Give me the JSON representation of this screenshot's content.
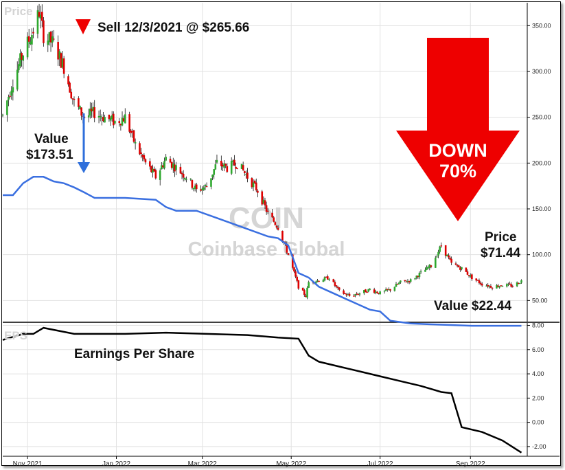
{
  "price_panel": {
    "corner_label": "Price",
    "y_ticks": [
      "350.00",
      "300.00",
      "250.00",
      "200.00",
      "150.00",
      "100.00",
      "50.00"
    ],
    "watermark_symbol": "COIN",
    "watermark_name": "Coinbase Global"
  },
  "eps_panel": {
    "corner_label": "EPS",
    "title": "Earnings Per Share",
    "y_ticks": [
      "8.00",
      "6.00",
      "4.00",
      "2.00",
      "0.00",
      "-2.00"
    ]
  },
  "x_axis": {
    "labels": [
      "Nov 2021",
      "Jan 2022",
      "Mar 2022",
      "May 2022",
      "Jul 2022",
      "Sep 2022"
    ]
  },
  "annotations": {
    "sell": "Sell 12/3/2021 @ $265.66",
    "value_start_line1": "Value",
    "value_start_line2": "$173.51",
    "down_line1": "DOWN",
    "down_line2": "70%",
    "price_end_line1": "Price",
    "price_end_line2": "$71.44",
    "value_end": "Value $22.44"
  },
  "colors": {
    "up_candle": "#2ea82e",
    "down_candle": "#dd0000",
    "value_line": "#3a6fe0",
    "eps_line": "#000000",
    "arrow": "#ee0000",
    "sell_marker": "#ee0000",
    "blue_arrow": "#2f6fdb"
  },
  "chart_data": [
    {
      "type": "line",
      "panel": "price",
      "x_axis": "date",
      "xlim": [
        "2021-10-15",
        "2022-10-10"
      ],
      "ylim": [
        27,
        375
      ],
      "grid": true,
      "series": [
        {
          "style": "candlestick",
          "x": [
            "2021-10-15",
            "2021-10-22",
            "2021-10-29",
            "2021-11-05",
            "2021-11-09",
            "2021-11-12",
            "2021-11-19",
            "2021-11-26",
            "2021-12-03",
            "2021-12-10",
            "2021-12-17",
            "2021-12-24",
            "2021-12-31",
            "2022-01-07",
            "2022-01-14",
            "2022-01-21",
            "2022-01-28",
            "2022-02-04",
            "2022-02-11",
            "2022-02-18",
            "2022-02-25",
            "2022-03-04",
            "2022-03-11",
            "2022-03-18",
            "2022-03-25",
            "2022-04-01",
            "2022-04-08",
            "2022-04-15",
            "2022-04-22",
            "2022-04-29",
            "2022-05-06",
            "2022-05-11",
            "2022-05-13",
            "2022-05-20",
            "2022-05-27",
            "2022-06-03",
            "2022-06-10",
            "2022-06-17",
            "2022-06-24",
            "2022-07-01",
            "2022-07-08",
            "2022-07-15",
            "2022-07-22",
            "2022-07-29",
            "2022-08-05",
            "2022-08-12",
            "2022-08-19",
            "2022-08-26",
            "2022-09-02",
            "2022-09-09",
            "2022-09-16",
            "2022-09-23",
            "2022-09-30",
            "2022-10-06"
          ],
          "values": [
            252,
            290,
            320,
            345,
            365,
            340,
            330,
            305,
            266,
            250,
            255,
            250,
            245,
            250,
            220,
            200,
            185,
            205,
            195,
            185,
            170,
            175,
            200,
            195,
            200,
            185,
            170,
            145,
            130,
            100,
            65,
            55,
            70,
            72,
            75,
            60,
            55,
            58,
            62,
            58,
            62,
            70,
            72,
            80,
            88,
            110,
            90,
            85,
            75,
            68,
            65,
            67,
            66,
            71.44
          ]
        },
        {
          "name": "Value",
          "x": [
            "2021-10-15",
            "2021-10-22",
            "2021-10-29",
            "2021-11-05",
            "2021-11-12",
            "2021-11-19",
            "2021-11-26",
            "2021-12-03",
            "2021-12-10",
            "2021-12-17",
            "2022-01-07",
            "2022-01-28",
            "2022-02-04",
            "2022-02-11",
            "2022-02-25",
            "2022-03-11",
            "2022-04-01",
            "2022-04-15",
            "2022-04-22",
            "2022-04-29",
            "2022-05-06",
            "2022-05-13",
            "2022-05-20",
            "2022-06-03",
            "2022-06-17",
            "2022-06-24",
            "2022-07-01",
            "2022-07-08",
            "2022-07-22",
            "2022-08-05",
            "2022-09-02",
            "2022-10-06"
          ],
          "values": [
            165,
            165,
            178,
            185,
            185,
            180,
            178,
            173.51,
            168,
            162,
            162,
            160,
            152,
            148,
            148,
            140,
            128,
            120,
            118,
            110,
            80,
            75,
            65,
            55,
            45,
            40,
            38,
            28,
            25,
            24,
            22.44,
            22.44
          ]
        }
      ]
    },
    {
      "type": "line",
      "panel": "eps",
      "x_axis": "date",
      "xlim": [
        "2021-10-15",
        "2022-10-10"
      ],
      "ylim": [
        -2.8,
        8.2
      ],
      "grid": true,
      "series": [
        {
          "name": "Earnings Per Share",
          "x": [
            "2021-10-15",
            "2021-10-29",
            "2021-11-05",
            "2021-11-12",
            "2021-12-03",
            "2022-01-07",
            "2022-02-04",
            "2022-03-04",
            "2022-04-01",
            "2022-04-22",
            "2022-05-06",
            "2022-05-13",
            "2022-05-20",
            "2022-06-03",
            "2022-06-17",
            "2022-07-01",
            "2022-07-15",
            "2022-07-29",
            "2022-08-12",
            "2022-08-19",
            "2022-08-26",
            "2022-09-09",
            "2022-09-23",
            "2022-10-06"
          ],
          "values": [
            6.8,
            7.3,
            7.3,
            7.8,
            7.3,
            7.3,
            7.4,
            7.3,
            7.2,
            7.0,
            6.9,
            5.5,
            5.0,
            4.6,
            4.2,
            3.8,
            3.4,
            3.0,
            2.5,
            2.4,
            -0.4,
            -0.8,
            -1.5,
            -2.5
          ]
        }
      ]
    }
  ]
}
